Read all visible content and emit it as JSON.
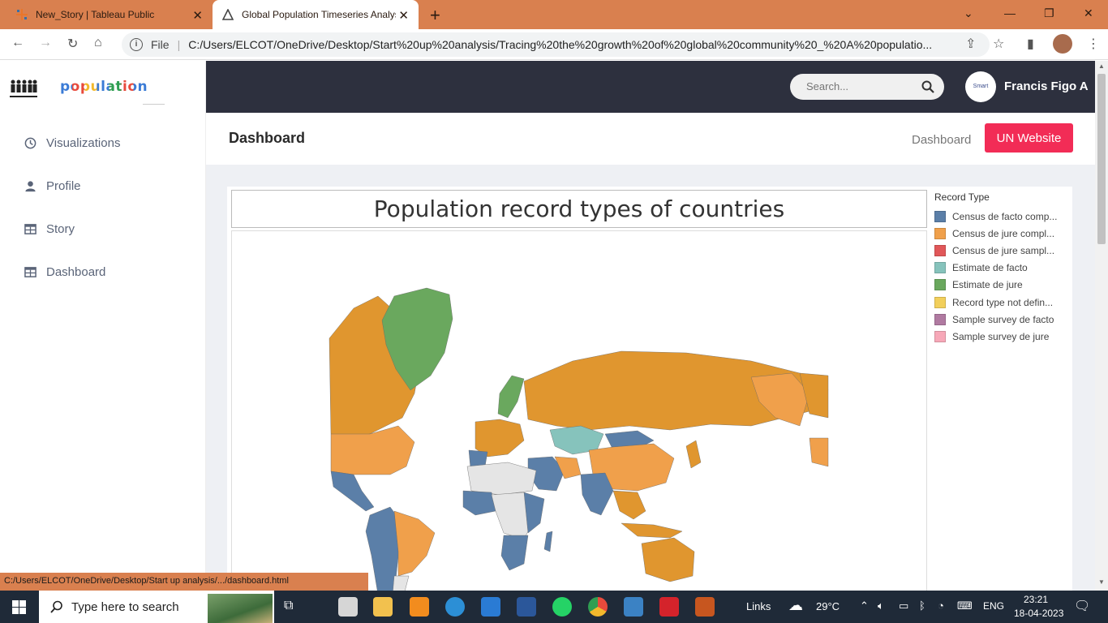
{
  "browser": {
    "tabs": [
      {
        "title": "New_Story | Tableau Public"
      },
      {
        "title": "Global Population Timeseries Analysi"
      }
    ],
    "address": {
      "file_label": "File",
      "url": "C:/Users/ELCOT/OneDrive/Desktop/Start%20up%20analysis/Tracing%20the%20growth%20of%20global%20community%20_%20A%20populatio..."
    },
    "status_url": "C:/Users/ELCOT/OneDrive/Desktop/Start up analysis/.../dashboard.html"
  },
  "sidebar": {
    "logo_text": "population",
    "items": [
      {
        "label": "Visualizations",
        "icon": "clock-icon"
      },
      {
        "label": "Profile",
        "icon": "user-icon"
      },
      {
        "label": "Story",
        "icon": "table-icon"
      },
      {
        "label": "Dashboard",
        "icon": "table-icon"
      }
    ]
  },
  "header": {
    "search_placeholder": "Search...",
    "avatar_text": "Smart Interna",
    "username": "Francis Figo A"
  },
  "page": {
    "title": "Dashboard",
    "breadcrumb": "Dashboard",
    "un_button": "UN Website"
  },
  "chart_data": {
    "type": "map",
    "title": "Population record types of countries",
    "legend_title": "Record Type",
    "legend": [
      {
        "label": "Census de facto comp...",
        "color": "#5b7fa8"
      },
      {
        "label": "Census de jure compl...",
        "color": "#f0a04b"
      },
      {
        "label": "Census de jure sampl...",
        "color": "#e15759"
      },
      {
        "label": "Estimate de facto",
        "color": "#86c3bc"
      },
      {
        "label": "Estimate de jure",
        "color": "#6aa85e"
      },
      {
        "label": "Record type not defin...",
        "color": "#f2cf5b"
      },
      {
        "label": "Sample survey de facto",
        "color": "#b07aa1"
      },
      {
        "label": "Sample survey de jure",
        "color": "#f7a8b8"
      }
    ],
    "colors": {
      "no_data": "#e5e5e5",
      "ocean": "#ffffff"
    }
  },
  "taskbar": {
    "search_placeholder": "Type here to search",
    "links_label": "Links",
    "weather": "29°C",
    "language": "ENG",
    "time": "23:21",
    "date": "18-04-2023"
  }
}
